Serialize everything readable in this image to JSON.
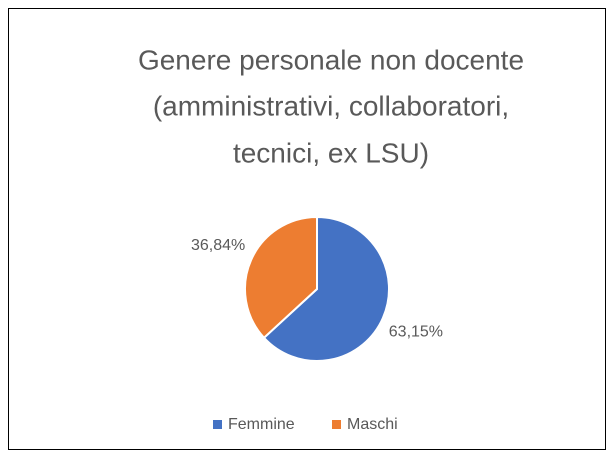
{
  "chart_data": {
    "type": "pie",
    "title": [
      "Genere personale non docente",
      "(amministrativi, collaboratori,",
      "tecnici, ex LSU)"
    ],
    "categories": [
      "Femmine",
      "Maschi"
    ],
    "values": [
      63.15,
      36.84
    ],
    "value_labels": [
      "63,15%",
      "36,84%"
    ],
    "colors": [
      "#4472c4",
      "#ed7d31"
    ],
    "legend": "bottom"
  }
}
